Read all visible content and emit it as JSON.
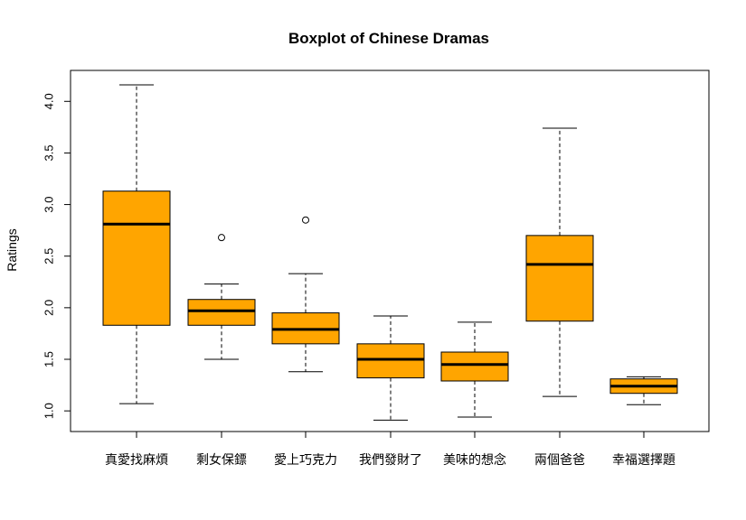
{
  "chart_data": {
    "type": "boxplot",
    "title": "Boxplot of Chinese Dramas",
    "xlabel": "",
    "ylabel": "Ratings",
    "ylim": [
      0.8,
      4.3
    ],
    "yticks": [
      1.0,
      1.5,
      2.0,
      2.5,
      3.0,
      3.5,
      4.0
    ],
    "ytick_labels": [
      "1.0",
      "1.5",
      "2.0",
      "2.5",
      "3.0",
      "3.5",
      "4.0"
    ],
    "categories": [
      "真愛找麻煩",
      "剩女保鏢",
      "愛上巧克力",
      "我們發財了",
      "美味的想念",
      "兩個爸爸",
      "幸福選擇題"
    ],
    "boxes": [
      {
        "min": 1.07,
        "q1": 1.83,
        "median": 2.81,
        "q3": 3.13,
        "max": 4.16,
        "outliers": []
      },
      {
        "min": 1.5,
        "q1": 1.83,
        "median": 1.97,
        "q3": 2.08,
        "max": 2.23,
        "outliers": [
          2.68
        ]
      },
      {
        "min": 1.38,
        "q1": 1.65,
        "median": 1.79,
        "q3": 1.95,
        "max": 2.33,
        "outliers": [
          2.85
        ]
      },
      {
        "min": 0.91,
        "q1": 1.32,
        "median": 1.5,
        "q3": 1.65,
        "max": 1.92,
        "outliers": []
      },
      {
        "min": 0.94,
        "q1": 1.29,
        "median": 1.45,
        "q3": 1.57,
        "max": 1.86,
        "outliers": []
      },
      {
        "min": 1.14,
        "q1": 1.87,
        "median": 2.42,
        "q3": 2.7,
        "max": 3.74,
        "outliers": []
      },
      {
        "min": 1.06,
        "q1": 1.17,
        "median": 1.24,
        "q3": 1.31,
        "max": 1.33,
        "outliers": []
      }
    ],
    "box_color": "#FFA500",
    "grid": false,
    "legend": "none"
  }
}
